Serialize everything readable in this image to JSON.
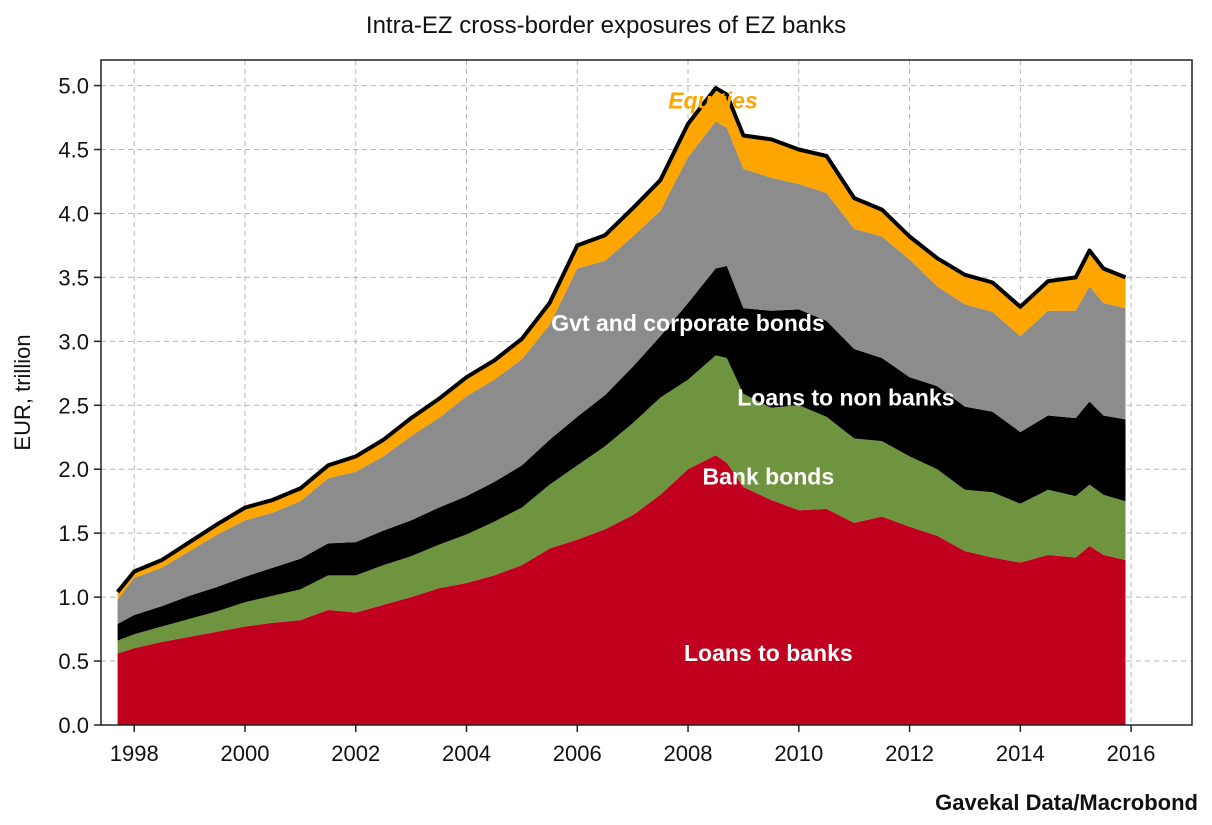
{
  "chart_data": {
    "type": "area",
    "stacked": true,
    "title": "Intra-EZ cross-border exposures of EZ banks",
    "ylabel": "EUR, trillion",
    "xlabel": "",
    "source": "Gavekal Data/Macrobond",
    "xlim": [
      1997.4,
      2017.1
    ],
    "ylim": [
      0,
      5.2
    ],
    "x_ticks": [
      1998,
      2000,
      2002,
      2004,
      2006,
      2008,
      2010,
      2012,
      2014,
      2016
    ],
    "y_ticks": [
      0.0,
      0.5,
      1.0,
      1.5,
      2.0,
      2.5,
      3.0,
      3.5,
      4.0,
      4.5,
      5.0
    ],
    "y_tick_labels": [
      "0.0",
      "0.5",
      "1.0",
      "1.5",
      "2.0",
      "2.5",
      "3.0",
      "3.5",
      "4.0",
      "4.5",
      "5.0"
    ],
    "grid": true,
    "legend": "none",
    "x": [
      1997.7,
      1998.0,
      1998.5,
      1999.0,
      1999.5,
      2000.0,
      2000.5,
      2001.0,
      2001.5,
      2002.0,
      2002.5,
      2003.0,
      2003.5,
      2004.0,
      2004.5,
      2005.0,
      2005.5,
      2006.0,
      2006.5,
      2007.0,
      2007.5,
      2008.0,
      2008.5,
      2008.7,
      2009.0,
      2009.5,
      2010.0,
      2010.5,
      2011.0,
      2011.5,
      2012.0,
      2012.5,
      2013.0,
      2013.5,
      2014.0,
      2014.5,
      2015.0,
      2015.25,
      2015.5,
      2015.9
    ],
    "series": [
      {
        "name": "Loans to banks",
        "color": "#c0001e",
        "values": [
          0.56,
          0.6,
          0.65,
          0.69,
          0.73,
          0.77,
          0.8,
          0.82,
          0.9,
          0.88,
          0.94,
          1.0,
          1.07,
          1.11,
          1.17,
          1.25,
          1.38,
          1.45,
          1.53,
          1.64,
          1.8,
          2.0,
          2.11,
          2.05,
          1.86,
          1.76,
          1.68,
          1.69,
          1.58,
          1.63,
          1.55,
          1.48,
          1.36,
          1.31,
          1.27,
          1.33,
          1.31,
          1.4,
          1.33,
          1.29
        ]
      },
      {
        "name": "Bank bonds",
        "color": "#6e9440",
        "values": [
          0.1,
          0.11,
          0.12,
          0.14,
          0.16,
          0.19,
          0.21,
          0.24,
          0.27,
          0.29,
          0.31,
          0.32,
          0.34,
          0.38,
          0.42,
          0.45,
          0.5,
          0.58,
          0.65,
          0.72,
          0.76,
          0.7,
          0.78,
          0.82,
          0.73,
          0.72,
          0.82,
          0.72,
          0.66,
          0.59,
          0.55,
          0.52,
          0.48,
          0.51,
          0.46,
          0.51,
          0.48,
          0.48,
          0.47,
          0.46
        ]
      },
      {
        "name": "Loans to non banks",
        "color": "#000000",
        "values": [
          0.13,
          0.15,
          0.16,
          0.18,
          0.19,
          0.2,
          0.22,
          0.24,
          0.25,
          0.26,
          0.27,
          0.28,
          0.29,
          0.3,
          0.31,
          0.33,
          0.35,
          0.38,
          0.4,
          0.44,
          0.48,
          0.6,
          0.68,
          0.72,
          0.67,
          0.76,
          0.75,
          0.75,
          0.7,
          0.65,
          0.62,
          0.65,
          0.65,
          0.63,
          0.56,
          0.58,
          0.61,
          0.65,
          0.62,
          0.64
        ]
      },
      {
        "name": "Gvt and corporate bonds",
        "color": "#8c8c8c",
        "values": [
          0.19,
          0.29,
          0.3,
          0.35,
          0.41,
          0.44,
          0.43,
          0.45,
          0.51,
          0.55,
          0.58,
          0.66,
          0.7,
          0.78,
          0.8,
          0.83,
          0.9,
          1.16,
          1.05,
          1.02,
          0.98,
          1.14,
          1.15,
          1.08,
          1.09,
          1.04,
          0.98,
          1.0,
          0.94,
          0.95,
          0.92,
          0.78,
          0.8,
          0.78,
          0.75,
          0.82,
          0.84,
          0.9,
          0.88,
          0.87
        ]
      },
      {
        "name": "Equities",
        "color": "#ffa500",
        "values": [
          0.06,
          0.05,
          0.06,
          0.07,
          0.08,
          0.1,
          0.1,
          0.1,
          0.1,
          0.12,
          0.13,
          0.14,
          0.15,
          0.15,
          0.15,
          0.16,
          0.17,
          0.18,
          0.2,
          0.22,
          0.24,
          0.26,
          0.26,
          0.26,
          0.26,
          0.3,
          0.27,
          0.29,
          0.24,
          0.21,
          0.18,
          0.22,
          0.23,
          0.23,
          0.23,
          0.23,
          0.26,
          0.28,
          0.27,
          0.24
        ]
      }
    ],
    "labels": {
      "equities": "Equities",
      "gvt_bonds": "Gvt and corporate bonds",
      "loans_non_banks": "Loans to non banks",
      "bank_bonds": "Bank bonds",
      "loans_banks": "Loans to banks"
    },
    "label_anchors": {
      "equities": {
        "x": 2008.45,
        "y": 4.82
      },
      "gvt_bonds": {
        "x": 2008.0,
        "y": 3.08
      },
      "loans_non_banks": {
        "x": 2010.85,
        "y": 2.5
      },
      "bank_bonds": {
        "x": 2009.45,
        "y": 1.88
      },
      "loans_banks": {
        "x": 2009.45,
        "y": 0.5
      }
    },
    "label_colors": {
      "equities": "#ffa500",
      "other": "#ffffff"
    }
  }
}
